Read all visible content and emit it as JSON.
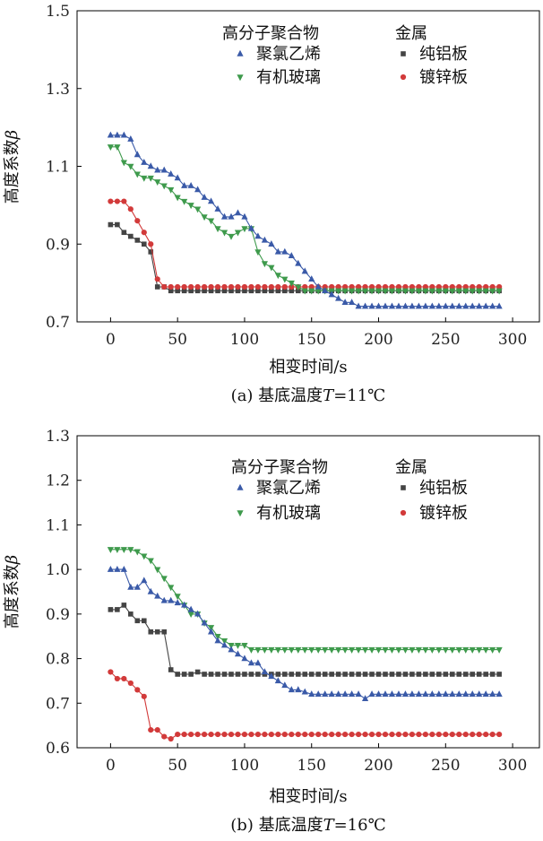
{
  "chart_data": [
    {
      "type": "line",
      "title": "(a) 基底温度T=11℃",
      "title_parts": {
        "prefix": "(a) 基底温度",
        "var": "T",
        "suffix": "=11℃"
      },
      "xlabel": "相变时间/s",
      "ylabel": "高度系数",
      "ylabel_symbol": "β",
      "xlim": [
        -25,
        320
      ],
      "ylim": [
        0.7,
        1.5
      ],
      "xticks": [
        0,
        50,
        100,
        150,
        200,
        250,
        300
      ],
      "yticks": [
        "0.7",
        "0.9",
        "1.1",
        "1.3",
        "1.5"
      ],
      "grid": false,
      "legend": {
        "placement": "top-right",
        "group1_title": "高分子聚合物",
        "group2_title": "金属"
      },
      "series": [
        {
          "name": "聚氯乙烯",
          "marker": "triangle-up",
          "color": "#3a5aa8",
          "x": [
            0,
            5,
            10,
            15,
            20,
            25,
            30,
            35,
            40,
            45,
            50,
            55,
            60,
            65,
            70,
            75,
            80,
            85,
            90,
            95,
            100,
            105,
            110,
            115,
            120,
            125,
            130,
            135,
            140,
            145,
            150,
            155,
            160,
            165,
            170,
            175,
            180,
            185,
            190,
            195,
            200,
            205,
            210,
            215,
            220,
            225,
            230,
            235,
            240,
            245,
            250,
            255,
            260,
            265,
            270,
            275,
            280,
            285,
            290
          ],
          "y": [
            1.18,
            1.18,
            1.18,
            1.17,
            1.13,
            1.11,
            1.1,
            1.09,
            1.09,
            1.08,
            1.07,
            1.05,
            1.05,
            1.04,
            1.02,
            1.01,
            0.99,
            0.97,
            0.97,
            0.98,
            0.97,
            0.94,
            0.92,
            0.91,
            0.9,
            0.88,
            0.88,
            0.87,
            0.85,
            0.83,
            0.81,
            0.79,
            0.78,
            0.77,
            0.76,
            0.75,
            0.75,
            0.74,
            0.74,
            0.74,
            0.74,
            0.74,
            0.74,
            0.74,
            0.74,
            0.74,
            0.74,
            0.74,
            0.74,
            0.74,
            0.74,
            0.74,
            0.74,
            0.74,
            0.74,
            0.74,
            0.74,
            0.74,
            0.74
          ]
        },
        {
          "name": "有机玻璃",
          "marker": "triangle-down",
          "color": "#3e9a4c",
          "x": [
            0,
            5,
            10,
            15,
            20,
            25,
            30,
            35,
            40,
            45,
            50,
            55,
            60,
            65,
            70,
            75,
            80,
            85,
            90,
            95,
            100,
            105,
            110,
            115,
            120,
            125,
            130,
            135,
            140,
            145,
            150,
            155,
            160,
            165,
            170,
            175,
            180,
            185,
            190,
            195,
            200,
            205,
            210,
            215,
            220,
            225,
            230,
            235,
            240,
            245,
            250,
            255,
            260,
            265,
            270,
            275,
            280,
            285,
            290
          ],
          "y": [
            1.15,
            1.15,
            1.11,
            1.1,
            1.08,
            1.07,
            1.07,
            1.06,
            1.05,
            1.04,
            1.02,
            1.01,
            1.0,
            0.99,
            0.97,
            0.96,
            0.94,
            0.93,
            0.92,
            0.93,
            0.94,
            0.94,
            0.88,
            0.85,
            0.84,
            0.82,
            0.81,
            0.8,
            0.79,
            0.78,
            0.78,
            0.78,
            0.78,
            0.78,
            0.78,
            0.78,
            0.78,
            0.78,
            0.78,
            0.78,
            0.78,
            0.78,
            0.78,
            0.78,
            0.78,
            0.78,
            0.78,
            0.78,
            0.78,
            0.78,
            0.78,
            0.78,
            0.78,
            0.78,
            0.78,
            0.78,
            0.78,
            0.78,
            0.78
          ]
        },
        {
          "name": "纯铝板",
          "marker": "square",
          "color": "#444444",
          "x": [
            0,
            5,
            10,
            15,
            20,
            25,
            30,
            35,
            40,
            45,
            50,
            55,
            60,
            65,
            70,
            75,
            80,
            85,
            90,
            95,
            100,
            105,
            110,
            115,
            120,
            125,
            130,
            135,
            140,
            145,
            150,
            155,
            160,
            165,
            170,
            175,
            180,
            185,
            190,
            195,
            200,
            205,
            210,
            215,
            220,
            225,
            230,
            235,
            240,
            245,
            250,
            255,
            260,
            265,
            270,
            275,
            280,
            285,
            290
          ],
          "y": [
            0.95,
            0.95,
            0.93,
            0.92,
            0.91,
            0.9,
            0.88,
            0.79,
            0.79,
            0.78,
            0.78,
            0.78,
            0.78,
            0.78,
            0.78,
            0.78,
            0.78,
            0.78,
            0.78,
            0.78,
            0.78,
            0.78,
            0.78,
            0.78,
            0.78,
            0.78,
            0.78,
            0.78,
            0.78,
            0.78,
            0.78,
            0.78,
            0.78,
            0.78,
            0.78,
            0.78,
            0.78,
            0.78,
            0.78,
            0.78,
            0.78,
            0.78,
            0.78,
            0.78,
            0.78,
            0.78,
            0.78,
            0.78,
            0.78,
            0.78,
            0.78,
            0.78,
            0.78,
            0.78,
            0.78,
            0.78,
            0.78,
            0.78,
            0.78
          ]
        },
        {
          "name": "镀锌板",
          "marker": "circle",
          "color": "#d23a3a",
          "x": [
            0,
            5,
            10,
            15,
            20,
            25,
            30,
            35,
            40,
            45,
            50,
            55,
            60,
            65,
            70,
            75,
            80,
            85,
            90,
            95,
            100,
            105,
            110,
            115,
            120,
            125,
            130,
            135,
            140,
            145,
            150,
            155,
            160,
            165,
            170,
            175,
            180,
            185,
            190,
            195,
            200,
            205,
            210,
            215,
            220,
            225,
            230,
            235,
            240,
            245,
            250,
            255,
            260,
            265,
            270,
            275,
            280,
            285,
            290
          ],
          "y": [
            1.01,
            1.01,
            1.01,
            0.99,
            0.96,
            0.93,
            0.9,
            0.81,
            0.79,
            0.79,
            0.79,
            0.79,
            0.79,
            0.79,
            0.79,
            0.79,
            0.79,
            0.79,
            0.79,
            0.79,
            0.79,
            0.79,
            0.79,
            0.79,
            0.79,
            0.79,
            0.79,
            0.79,
            0.79,
            0.79,
            0.79,
            0.79,
            0.79,
            0.79,
            0.79,
            0.79,
            0.79,
            0.79,
            0.79,
            0.79,
            0.79,
            0.79,
            0.79,
            0.79,
            0.79,
            0.79,
            0.79,
            0.79,
            0.79,
            0.79,
            0.79,
            0.79,
            0.79,
            0.79,
            0.79,
            0.79,
            0.79,
            0.79,
            0.79
          ]
        }
      ]
    },
    {
      "type": "line",
      "title": "(b) 基底温度T=16℃",
      "title_parts": {
        "prefix": "(b) 基底温度",
        "var": "T",
        "suffix": "=16℃"
      },
      "xlabel": "相变时间/s",
      "ylabel": "高度系数",
      "ylabel_symbol": "β",
      "xlim": [
        -25,
        320
      ],
      "ylim": [
        0.6,
        1.3
      ],
      "xticks": [
        0,
        50,
        100,
        150,
        200,
        250,
        300
      ],
      "yticks": [
        "0.6",
        "0.7",
        "0.8",
        "0.9",
        "1.0",
        "1.1",
        "1.2",
        "1.3"
      ],
      "grid": false,
      "legend": {
        "placement": "top-right",
        "group1_title": "高分子聚合物",
        "group2_title": "金属"
      },
      "series": [
        {
          "name": "聚氯乙烯",
          "marker": "triangle-up",
          "color": "#3a5aa8",
          "x": [
            0,
            5,
            10,
            15,
            20,
            25,
            30,
            35,
            40,
            45,
            50,
            55,
            60,
            65,
            70,
            75,
            80,
            85,
            90,
            95,
            100,
            105,
            110,
            115,
            120,
            125,
            130,
            135,
            140,
            145,
            150,
            155,
            160,
            165,
            170,
            175,
            180,
            185,
            190,
            195,
            200,
            205,
            210,
            215,
            220,
            225,
            230,
            235,
            240,
            245,
            250,
            255,
            260,
            265,
            270,
            275,
            280,
            285,
            290
          ],
          "y": [
            1.0,
            1.0,
            1.0,
            0.96,
            0.96,
            0.975,
            0.95,
            0.94,
            0.93,
            0.93,
            0.925,
            0.92,
            0.91,
            0.9,
            0.88,
            0.86,
            0.84,
            0.83,
            0.82,
            0.81,
            0.8,
            0.79,
            0.79,
            0.77,
            0.76,
            0.75,
            0.74,
            0.73,
            0.73,
            0.725,
            0.72,
            0.72,
            0.72,
            0.72,
            0.72,
            0.72,
            0.72,
            0.72,
            0.71,
            0.72,
            0.72,
            0.72,
            0.72,
            0.72,
            0.72,
            0.72,
            0.72,
            0.72,
            0.72,
            0.72,
            0.72,
            0.72,
            0.72,
            0.72,
            0.72,
            0.72,
            0.72,
            0.72,
            0.72
          ]
        },
        {
          "name": "有机玻璃",
          "marker": "triangle-down",
          "color": "#3e9a4c",
          "x": [
            0,
            5,
            10,
            15,
            20,
            25,
            30,
            35,
            40,
            45,
            50,
            55,
            60,
            65,
            70,
            75,
            80,
            85,
            90,
            95,
            100,
            105,
            110,
            115,
            120,
            125,
            130,
            135,
            140,
            145,
            150,
            155,
            160,
            165,
            170,
            175,
            180,
            185,
            190,
            195,
            200,
            205,
            210,
            215,
            220,
            225,
            230,
            235,
            240,
            245,
            250,
            255,
            260,
            265,
            270,
            275,
            280,
            285,
            290
          ],
          "y": [
            1.045,
            1.045,
            1.045,
            1.045,
            1.04,
            1.03,
            1.02,
            1.0,
            0.98,
            0.96,
            0.94,
            0.92,
            0.9,
            0.9,
            0.88,
            0.87,
            0.85,
            0.84,
            0.83,
            0.83,
            0.83,
            0.82,
            0.82,
            0.82,
            0.82,
            0.82,
            0.82,
            0.82,
            0.82,
            0.82,
            0.82,
            0.82,
            0.82,
            0.82,
            0.82,
            0.82,
            0.82,
            0.82,
            0.82,
            0.82,
            0.82,
            0.82,
            0.82,
            0.82,
            0.82,
            0.82,
            0.82,
            0.82,
            0.82,
            0.82,
            0.82,
            0.82,
            0.82,
            0.82,
            0.82,
            0.82,
            0.82,
            0.82,
            0.82
          ]
        },
        {
          "name": "纯铝板",
          "marker": "square",
          "color": "#444444",
          "x": [
            0,
            5,
            10,
            15,
            20,
            25,
            30,
            35,
            40,
            45,
            50,
            55,
            60,
            65,
            70,
            75,
            80,
            85,
            90,
            95,
            100,
            105,
            110,
            115,
            120,
            125,
            130,
            135,
            140,
            145,
            150,
            155,
            160,
            165,
            170,
            175,
            180,
            185,
            190,
            195,
            200,
            205,
            210,
            215,
            220,
            225,
            230,
            235,
            240,
            245,
            250,
            255,
            260,
            265,
            270,
            275,
            280,
            285,
            290
          ],
          "y": [
            0.91,
            0.91,
            0.92,
            0.9,
            0.885,
            0.885,
            0.86,
            0.86,
            0.86,
            0.775,
            0.765,
            0.765,
            0.765,
            0.77,
            0.765,
            0.765,
            0.765,
            0.765,
            0.765,
            0.765,
            0.765,
            0.765,
            0.765,
            0.765,
            0.765,
            0.765,
            0.765,
            0.765,
            0.765,
            0.765,
            0.765,
            0.765,
            0.765,
            0.765,
            0.765,
            0.765,
            0.765,
            0.765,
            0.765,
            0.765,
            0.765,
            0.765,
            0.765,
            0.765,
            0.765,
            0.765,
            0.765,
            0.765,
            0.765,
            0.765,
            0.765,
            0.765,
            0.765,
            0.765,
            0.765,
            0.765,
            0.765,
            0.765,
            0.765
          ]
        },
        {
          "name": "镀锌板",
          "marker": "circle",
          "color": "#d23a3a",
          "x": [
            0,
            5,
            10,
            15,
            20,
            25,
            30,
            35,
            40,
            45,
            50,
            55,
            60,
            65,
            70,
            75,
            80,
            85,
            90,
            95,
            100,
            105,
            110,
            115,
            120,
            125,
            130,
            135,
            140,
            145,
            150,
            155,
            160,
            165,
            170,
            175,
            180,
            185,
            190,
            195,
            200,
            205,
            210,
            215,
            220,
            225,
            230,
            235,
            240,
            245,
            250,
            255,
            260,
            265,
            270,
            275,
            280,
            285,
            290
          ],
          "y": [
            0.77,
            0.755,
            0.755,
            0.745,
            0.73,
            0.715,
            0.64,
            0.64,
            0.625,
            0.62,
            0.63,
            0.63,
            0.63,
            0.63,
            0.63,
            0.63,
            0.63,
            0.63,
            0.63,
            0.63,
            0.63,
            0.63,
            0.63,
            0.63,
            0.63,
            0.63,
            0.63,
            0.63,
            0.63,
            0.63,
            0.63,
            0.63,
            0.63,
            0.63,
            0.63,
            0.63,
            0.63,
            0.63,
            0.63,
            0.63,
            0.63,
            0.63,
            0.63,
            0.63,
            0.63,
            0.63,
            0.63,
            0.63,
            0.63,
            0.63,
            0.63,
            0.63,
            0.63,
            0.63,
            0.63,
            0.63,
            0.63,
            0.63,
            0.63
          ]
        }
      ]
    }
  ]
}
